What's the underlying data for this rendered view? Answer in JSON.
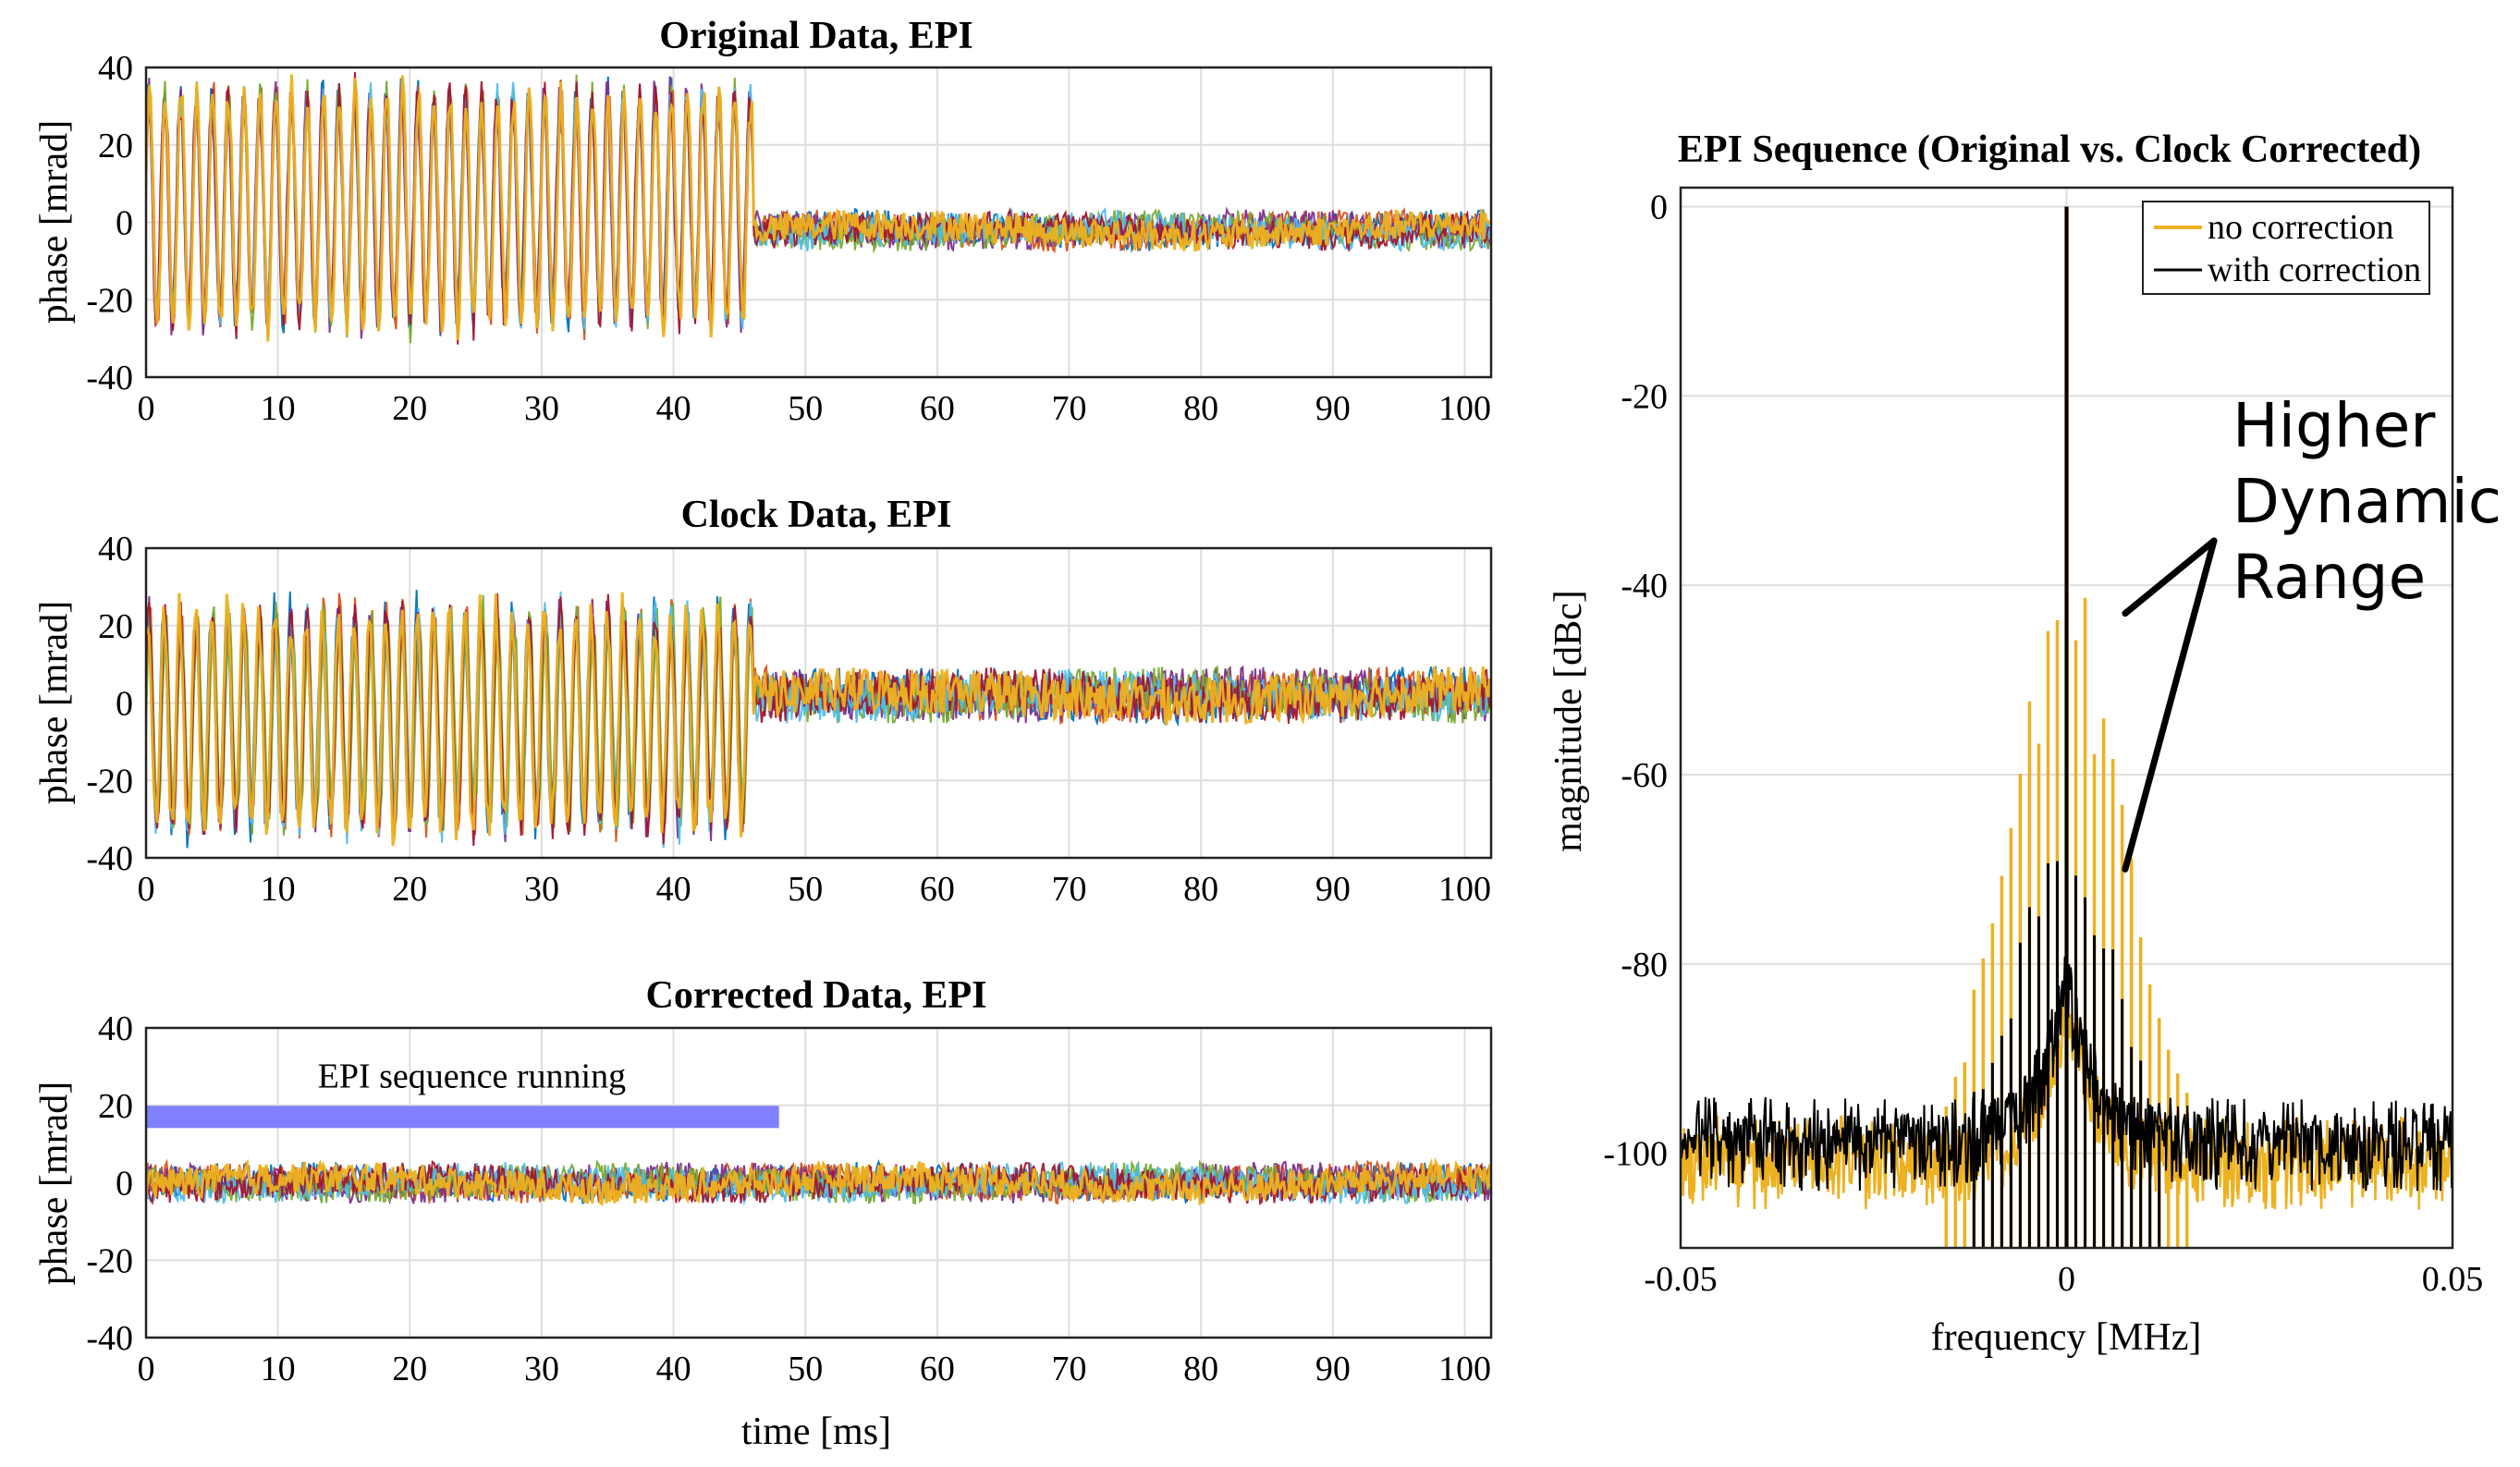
{
  "chart_data": [
    {
      "type": "line",
      "title": "Original Data, EPI",
      "xlabel": "",
      "ylabel": "phase [mrad]",
      "xlim": [
        0,
        102
      ],
      "ylim": [
        -40,
        40
      ],
      "x_ticks": [
        0,
        10,
        20,
        30,
        40,
        50,
        60,
        70,
        80,
        90,
        100
      ],
      "y_ticks": [
        -40,
        -20,
        0,
        20,
        40
      ],
      "grid": true,
      "series_colors": [
        "#edb120",
        "#0072bd",
        "#d95319",
        "#7e2f8e",
        "#77ac30",
        "#4dbeee",
        "#a2142f"
      ],
      "segments": [
        {
          "x_range": [
            0,
            46
          ],
          "center": 4,
          "oscillation_amplitude": 32,
          "oscillation_period_ms": 1.2,
          "noise_amplitude": 4
        },
        {
          "x_range": [
            46,
            102
          ],
          "center": -2,
          "oscillation_amplitude": 0,
          "oscillation_period_ms": 1.2,
          "noise_amplitude": 4
        }
      ]
    },
    {
      "type": "line",
      "title": "Clock Data, EPI",
      "xlabel": "",
      "ylabel": "phase [mrad]",
      "xlim": [
        0,
        102
      ],
      "ylim": [
        -40,
        40
      ],
      "x_ticks": [
        0,
        10,
        20,
        30,
        40,
        50,
        60,
        70,
        80,
        90,
        100
      ],
      "y_ticks": [
        -40,
        -20,
        0,
        20,
        40
      ],
      "grid": true,
      "series_colors": [
        "#edb120",
        "#0072bd",
        "#d95319",
        "#7e2f8e",
        "#77ac30",
        "#4dbeee",
        "#a2142f"
      ],
      "segments": [
        {
          "x_range": [
            0,
            46
          ],
          "center": -4,
          "oscillation_amplitude": 30,
          "oscillation_period_ms": 1.2,
          "noise_amplitude": 4
        },
        {
          "x_range": [
            46,
            102
          ],
          "center": 2,
          "oscillation_amplitude": 0,
          "oscillation_period_ms": 1.2,
          "noise_amplitude": 6
        }
      ]
    },
    {
      "type": "line",
      "title": "Corrected Data, EPI",
      "xlabel": "time [ms]",
      "ylabel": "phase [mrad]",
      "xlim": [
        0,
        102
      ],
      "ylim": [
        -40,
        40
      ],
      "x_ticks": [
        0,
        10,
        20,
        30,
        40,
        50,
        60,
        70,
        80,
        90,
        100
      ],
      "y_ticks": [
        -40,
        -20,
        0,
        20,
        40
      ],
      "grid": true,
      "series_colors": [
        "#edb120",
        "#0072bd",
        "#d95319",
        "#7e2f8e",
        "#77ac30",
        "#4dbeee",
        "#a2142f"
      ],
      "segments": [
        {
          "x_range": [
            0,
            102
          ],
          "center": 0,
          "oscillation_amplitude": 0,
          "oscillation_period_ms": 1.2,
          "noise_amplitude": 4
        }
      ],
      "annotation": {
        "text": "EPI sequence running",
        "bar_x_range": [
          0,
          48
        ],
        "bar_y": 17,
        "bar_color": "#8080ff"
      }
    },
    {
      "type": "line",
      "title": "EPI Sequence (Original vs. Clock Corrected)",
      "xlabel": "frequency [MHz]",
      "ylabel": "magnitude [dBc]",
      "xlim": [
        -0.05,
        0.05
      ],
      "ylim": [
        -110,
        2
      ],
      "x_ticks": [
        -0.05,
        0,
        0.05
      ],
      "x_tick_labels": [
        "-0.05",
        "0",
        "0.05"
      ],
      "y_ticks": [
        0,
        -20,
        -40,
        -60,
        -80,
        -100
      ],
      "grid": true,
      "legend": {
        "position": "top-right",
        "entries": [
          {
            "label": "no correction",
            "color": "#edb120"
          },
          {
            "label": "with correction",
            "color": "#000000"
          }
        ]
      },
      "series": [
        {
          "name": "no correction",
          "color": "#edb120",
          "peak_value": 0,
          "noise_floor": -102,
          "sideband_spacing_MHz": 0.0012,
          "sideband_peaks": [
            -45,
            -44,
            -55,
            -55,
            -60,
            -65,
            -70,
            -75,
            -80,
            -85,
            -88,
            -92,
            -96
          ]
        },
        {
          "name": "with correction",
          "color": "#000000",
          "peak_value": 0,
          "noise_floor": -100,
          "sideband_spacing_MHz": 0.0012,
          "sideband_peaks": [
            -68,
            -70,
            -74,
            -76,
            -80,
            -83,
            -86,
            -90,
            -92,
            -95
          ]
        }
      ],
      "callout": {
        "text": [
          "Higher",
          "Dynamic",
          "Range"
        ],
        "pointer_targets": [
          {
            "x": 0.004,
            "y": -42
          },
          {
            "x": 0.004,
            "y": -70
          }
        ]
      }
    }
  ]
}
